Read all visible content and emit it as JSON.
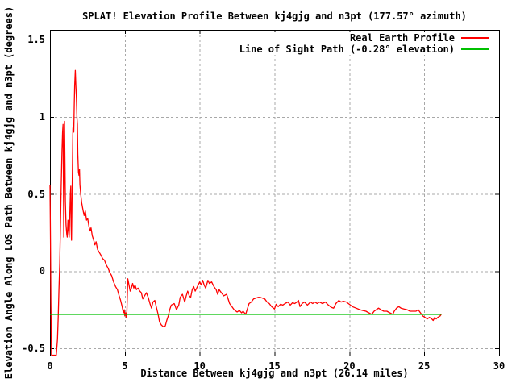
{
  "title": "SPLAT! Elevation Profile Between kj4gjg and n3pt (177.57° azimuth)",
  "axes": {
    "xlabel": "Distance Between kj4gjg and n3pt (26.14 miles)",
    "ylabel": "Elevation Angle Along LOS Path Between kj4gjg and n3pt (degrees)"
  },
  "legend": [
    {
      "label": "Real Earth Profile",
      "color": "#ff0000"
    },
    {
      "label": "Line of Sight Path (-0.28° elevation)",
      "color": "#00c000"
    }
  ],
  "colors": {
    "background": "#ffffff",
    "border": "#000000",
    "grid": "#a8a8a8",
    "profile": "#ff0000",
    "los": "#00c000",
    "text": "#000000"
  },
  "chart_data": {
    "type": "line",
    "title": "SPLAT! Elevation Profile Between kj4gjg and n3pt (177.57° azimuth)",
    "xlabel": "Distance Between kj4gjg and n3pt (26.14 miles)",
    "ylabel": "Elevation Angle Along LOS Path Between kj4gjg and n3pt (degrees)",
    "xlim": [
      0,
      30
    ],
    "ylim": [
      -0.5,
      1.5
    ],
    "grid": true,
    "grid_style": "dashed-gray",
    "legend_position": "top-right",
    "path_length_miles": 26.14,
    "azimuth_deg": 177.57,
    "x_ticks": [
      {
        "value": 0,
        "label": "0"
      },
      {
        "value": 5,
        "label": "5"
      },
      {
        "value": 10,
        "label": "10"
      },
      {
        "value": 15,
        "label": "15"
      },
      {
        "value": 20,
        "label": "20"
      },
      {
        "value": 25,
        "label": "25"
      },
      {
        "value": 30,
        "label": "30"
      }
    ],
    "y_ticks": [
      {
        "value": -0.5,
        "label": "-0.5"
      },
      {
        "value": 0,
        "label": "0"
      },
      {
        "value": 0.5,
        "label": "0.5"
      },
      {
        "value": 1,
        "label": "1"
      },
      {
        "value": 1.5,
        "label": "1.5"
      }
    ],
    "series": [
      {
        "name": "Real Earth Profile",
        "color": "#ff0000",
        "type": "line",
        "points": [
          [
            0,
            0.56
          ],
          [
            0.03,
            0.2
          ],
          [
            0.06,
            -0.2
          ],
          [
            0.1,
            -0.56
          ],
          [
            0.42,
            -0.56
          ],
          [
            0.5,
            -0.44
          ],
          [
            0.55,
            -0.3
          ],
          [
            0.6,
            -0.12
          ],
          [
            0.65,
            0.05
          ],
          [
            0.7,
            0.3
          ],
          [
            0.75,
            0.55
          ],
          [
            0.8,
            0.78
          ],
          [
            0.84,
            0.9
          ],
          [
            0.87,
            0.95
          ],
          [
            0.9,
            0.55
          ],
          [
            0.92,
            0.22
          ],
          [
            0.95,
            0.6
          ],
          [
            0.97,
            0.97
          ],
          [
            1.0,
            0.7
          ],
          [
            1.03,
            0.45
          ],
          [
            1.07,
            0.3
          ],
          [
            1.12,
            0.24
          ],
          [
            1.15,
            0.22
          ],
          [
            1.2,
            0.33
          ],
          [
            1.24,
            0.27
          ],
          [
            1.28,
            0.22
          ],
          [
            1.32,
            0.35
          ],
          [
            1.36,
            0.5
          ],
          [
            1.39,
            0.55
          ],
          [
            1.41,
            0.3
          ],
          [
            1.44,
            0.2
          ],
          [
            1.47,
            0.45
          ],
          [
            1.5,
            0.7
          ],
          [
            1.53,
            0.92
          ],
          [
            1.56,
            0.96
          ],
          [
            1.59,
            0.9
          ],
          [
            1.62,
            1.08
          ],
          [
            1.65,
            1.2
          ],
          [
            1.69,
            1.3
          ],
          [
            1.73,
            1.2
          ],
          [
            1.76,
            1.13
          ],
          [
            1.8,
            1.0
          ],
          [
            1.83,
            0.95
          ],
          [
            1.86,
            0.76
          ],
          [
            1.9,
            0.64
          ],
          [
            1.94,
            0.62
          ],
          [
            1.97,
            0.66
          ],
          [
            2.0,
            0.56
          ],
          [
            2.05,
            0.5
          ],
          [
            2.12,
            0.44
          ],
          [
            2.2,
            0.4
          ],
          [
            2.28,
            0.36
          ],
          [
            2.36,
            0.39
          ],
          [
            2.44,
            0.33
          ],
          [
            2.52,
            0.34
          ],
          [
            2.6,
            0.29
          ],
          [
            2.68,
            0.26
          ],
          [
            2.74,
            0.28
          ],
          [
            2.82,
            0.23
          ],
          [
            2.92,
            0.2
          ],
          [
            3.0,
            0.17
          ],
          [
            3.08,
            0.19
          ],
          [
            3.18,
            0.14
          ],
          [
            3.3,
            0.12
          ],
          [
            3.42,
            0.1
          ],
          [
            3.52,
            0.08
          ],
          [
            3.64,
            0.07
          ],
          [
            3.76,
            0.04
          ],
          [
            3.88,
            0.02
          ],
          [
            4.0,
            -0.01
          ],
          [
            4.12,
            -0.03
          ],
          [
            4.25,
            -0.07
          ],
          [
            4.38,
            -0.1
          ],
          [
            4.5,
            -0.12
          ],
          [
            4.62,
            -0.16
          ],
          [
            4.72,
            -0.19
          ],
          [
            4.82,
            -0.23
          ],
          [
            4.9,
            -0.27
          ],
          [
            4.96,
            -0.25
          ],
          [
            5.0,
            -0.29
          ],
          [
            5.06,
            -0.27
          ],
          [
            5.1,
            -0.3
          ],
          [
            5.14,
            -0.26
          ],
          [
            5.2,
            -0.05
          ],
          [
            5.28,
            -0.09
          ],
          [
            5.36,
            -0.13
          ],
          [
            5.44,
            -0.11
          ],
          [
            5.52,
            -0.08
          ],
          [
            5.6,
            -0.11
          ],
          [
            5.68,
            -0.09
          ],
          [
            5.78,
            -0.12
          ],
          [
            5.88,
            -0.11
          ],
          [
            6.0,
            -0.13
          ],
          [
            6.1,
            -0.14
          ],
          [
            6.2,
            -0.18
          ],
          [
            6.32,
            -0.16
          ],
          [
            6.44,
            -0.14
          ],
          [
            6.56,
            -0.17
          ],
          [
            6.68,
            -0.21
          ],
          [
            6.78,
            -0.24
          ],
          [
            6.88,
            -0.2
          ],
          [
            7.0,
            -0.19
          ],
          [
            7.1,
            -0.23
          ],
          [
            7.22,
            -0.28
          ],
          [
            7.32,
            -0.33
          ],
          [
            7.45,
            -0.35
          ],
          [
            7.58,
            -0.36
          ],
          [
            7.7,
            -0.355
          ],
          [
            7.8,
            -0.32
          ],
          [
            7.9,
            -0.29
          ],
          [
            8.0,
            -0.25
          ],
          [
            8.1,
            -0.22
          ],
          [
            8.3,
            -0.21
          ],
          [
            8.45,
            -0.25
          ],
          [
            8.6,
            -0.22
          ],
          [
            8.7,
            -0.17
          ],
          [
            8.85,
            -0.15
          ],
          [
            9.0,
            -0.2
          ],
          [
            9.1,
            -0.16
          ],
          [
            9.2,
            -0.13
          ],
          [
            9.3,
            -0.16
          ],
          [
            9.4,
            -0.17
          ],
          [
            9.5,
            -0.12
          ],
          [
            9.6,
            -0.1
          ],
          [
            9.7,
            -0.13
          ],
          [
            9.85,
            -0.1
          ],
          [
            10.0,
            -0.07
          ],
          [
            10.1,
            -0.09
          ],
          [
            10.2,
            -0.06
          ],
          [
            10.3,
            -0.09
          ],
          [
            10.4,
            -0.11
          ],
          [
            10.55,
            -0.06
          ],
          [
            10.65,
            -0.08
          ],
          [
            10.8,
            -0.07
          ],
          [
            10.95,
            -0.1
          ],
          [
            11.1,
            -0.12
          ],
          [
            11.2,
            -0.15
          ],
          [
            11.3,
            -0.12
          ],
          [
            11.45,
            -0.14
          ],
          [
            11.6,
            -0.16
          ],
          [
            11.8,
            -0.15
          ],
          [
            12.0,
            -0.21
          ],
          [
            12.15,
            -0.23
          ],
          [
            12.3,
            -0.25
          ],
          [
            12.5,
            -0.265
          ],
          [
            12.65,
            -0.255
          ],
          [
            12.8,
            -0.27
          ],
          [
            12.9,
            -0.26
          ],
          [
            13.07,
            -0.28
          ],
          [
            13.2,
            -0.24
          ],
          [
            13.3,
            -0.21
          ],
          [
            13.45,
            -0.2
          ],
          [
            13.6,
            -0.18
          ],
          [
            13.75,
            -0.175
          ],
          [
            13.9,
            -0.17
          ],
          [
            14.05,
            -0.17
          ],
          [
            14.2,
            -0.175
          ],
          [
            14.35,
            -0.18
          ],
          [
            14.5,
            -0.2
          ],
          [
            14.65,
            -0.21
          ],
          [
            14.8,
            -0.23
          ],
          [
            15.0,
            -0.245
          ],
          [
            15.1,
            -0.215
          ],
          [
            15.25,
            -0.23
          ],
          [
            15.4,
            -0.215
          ],
          [
            15.55,
            -0.22
          ],
          [
            15.7,
            -0.21
          ],
          [
            15.9,
            -0.2
          ],
          [
            16.05,
            -0.22
          ],
          [
            16.2,
            -0.205
          ],
          [
            16.35,
            -0.21
          ],
          [
            16.5,
            -0.2
          ],
          [
            16.6,
            -0.19
          ],
          [
            16.7,
            -0.23
          ],
          [
            16.85,
            -0.21
          ],
          [
            17.0,
            -0.2
          ],
          [
            17.2,
            -0.22
          ],
          [
            17.4,
            -0.2
          ],
          [
            17.55,
            -0.21
          ],
          [
            17.7,
            -0.2
          ],
          [
            17.85,
            -0.21
          ],
          [
            18.0,
            -0.2
          ],
          [
            18.2,
            -0.21
          ],
          [
            18.4,
            -0.2
          ],
          [
            18.6,
            -0.22
          ],
          [
            18.8,
            -0.235
          ],
          [
            18.95,
            -0.24
          ],
          [
            19.1,
            -0.21
          ],
          [
            19.3,
            -0.19
          ],
          [
            19.45,
            -0.2
          ],
          [
            19.6,
            -0.195
          ],
          [
            19.8,
            -0.2
          ],
          [
            20.0,
            -0.215
          ],
          [
            20.2,
            -0.23
          ],
          [
            20.45,
            -0.24
          ],
          [
            20.7,
            -0.25
          ],
          [
            20.9,
            -0.255
          ],
          [
            21.1,
            -0.26
          ],
          [
            21.3,
            -0.27
          ],
          [
            21.5,
            -0.28
          ],
          [
            21.65,
            -0.26
          ],
          [
            21.8,
            -0.25
          ],
          [
            21.95,
            -0.24
          ],
          [
            22.1,
            -0.25
          ],
          [
            22.3,
            -0.26
          ],
          [
            22.5,
            -0.26
          ],
          [
            22.7,
            -0.27
          ],
          [
            22.9,
            -0.28
          ],
          [
            23.0,
            -0.26
          ],
          [
            23.15,
            -0.24
          ],
          [
            23.3,
            -0.23
          ],
          [
            23.45,
            -0.24
          ],
          [
            23.65,
            -0.245
          ],
          [
            23.85,
            -0.25
          ],
          [
            24.05,
            -0.26
          ],
          [
            24.25,
            -0.26
          ],
          [
            24.45,
            -0.26
          ],
          [
            24.6,
            -0.25
          ],
          [
            24.75,
            -0.27
          ],
          [
            24.9,
            -0.29
          ],
          [
            25.05,
            -0.3
          ],
          [
            25.2,
            -0.31
          ],
          [
            25.35,
            -0.3
          ],
          [
            25.5,
            -0.31
          ],
          [
            25.6,
            -0.32
          ],
          [
            25.7,
            -0.3
          ],
          [
            25.8,
            -0.31
          ],
          [
            25.9,
            -0.3
          ],
          [
            26.0,
            -0.295
          ],
          [
            26.07,
            -0.29
          ],
          [
            26.14,
            -0.28
          ]
        ]
      },
      {
        "name": "Line of Sight Path (-0.28° elevation)",
        "color": "#00c000",
        "type": "hline",
        "elevation": -0.28,
        "x_range": [
          0,
          26.14
        ]
      }
    ]
  }
}
